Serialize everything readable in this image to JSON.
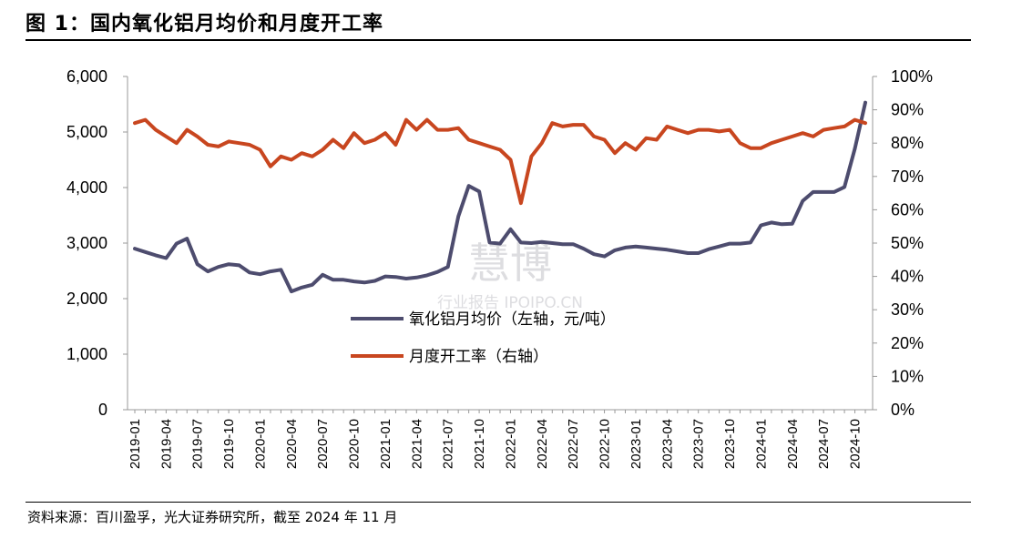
{
  "figure": {
    "title": "图 1：国内氧化铝月均价和月度开工率",
    "source": "资料来源：百川盈孚，光大证券研究所，截至 2024 年 11 月",
    "watermark": "慧博 行业报告 IPOIPO.CN"
  },
  "chart_data": {
    "type": "line",
    "x": [
      "2019-01",
      "2019-02",
      "2019-03",
      "2019-04",
      "2019-05",
      "2019-06",
      "2019-07",
      "2019-08",
      "2019-09",
      "2019-10",
      "2019-11",
      "2019-12",
      "2020-01",
      "2020-02",
      "2020-03",
      "2020-04",
      "2020-05",
      "2020-06",
      "2020-07",
      "2020-08",
      "2020-09",
      "2020-10",
      "2020-11",
      "2020-12",
      "2021-01",
      "2021-02",
      "2021-03",
      "2021-04",
      "2021-05",
      "2021-06",
      "2021-07",
      "2021-08",
      "2021-09",
      "2021-10",
      "2021-11",
      "2021-12",
      "2022-01",
      "2022-02",
      "2022-03",
      "2022-04",
      "2022-05",
      "2022-06",
      "2022-07",
      "2022-08",
      "2022-09",
      "2022-10",
      "2022-11",
      "2022-12",
      "2023-01",
      "2023-02",
      "2023-03",
      "2023-04",
      "2023-05",
      "2023-06",
      "2023-07",
      "2023-08",
      "2023-09",
      "2023-10",
      "2023-11",
      "2023-12",
      "2024-01",
      "2024-02",
      "2024-03",
      "2024-04",
      "2024-05",
      "2024-06",
      "2024-07",
      "2024-08",
      "2024-09",
      "2024-10",
      "2024-11"
    ],
    "xticks": [
      "2019-01",
      "2019-04",
      "2019-07",
      "2019-10",
      "2020-01",
      "2020-04",
      "2020-07",
      "2020-10",
      "2021-01",
      "2021-04",
      "2021-07",
      "2021-10",
      "2022-01",
      "2022-04",
      "2022-07",
      "2022-10",
      "2023-01",
      "2023-04",
      "2023-07",
      "2023-10",
      "2024-01",
      "2024-04",
      "2024-07",
      "2024-10"
    ],
    "series": [
      {
        "name": "氧化铝月均价（左轴，元/吨）",
        "axis": "left",
        "color": "#4d4c6e",
        "values": [
          2900,
          2840,
          2780,
          2730,
          2990,
          3080,
          2620,
          2490,
          2570,
          2620,
          2600,
          2470,
          2440,
          2490,
          2520,
          2130,
          2200,
          2250,
          2430,
          2340,
          2340,
          2310,
          2290,
          2320,
          2400,
          2390,
          2360,
          2380,
          2420,
          2480,
          2570,
          3480,
          4030,
          3930,
          3010,
          2990,
          3250,
          3010,
          3000,
          3020,
          3000,
          2980,
          2980,
          2900,
          2800,
          2760,
          2870,
          2920,
          2940,
          2920,
          2900,
          2880,
          2850,
          2820,
          2820,
          2890,
          2940,
          2990,
          2990,
          3010,
          3320,
          3370,
          3340,
          3350,
          3760,
          3920,
          3920,
          3920,
          4010,
          4700,
          5530
        ]
      },
      {
        "name": "月度开工率（右轴）",
        "axis": "right",
        "color": "#c8461f",
        "values": [
          86,
          87,
          84,
          82,
          80,
          84,
          82,
          79.5,
          79,
          80.5,
          80,
          79.5,
          78,
          73,
          76,
          75,
          77,
          76,
          78,
          81,
          78.5,
          83,
          80,
          81,
          83,
          79.5,
          87,
          84,
          87,
          84,
          84,
          84.5,
          81,
          80,
          79,
          78,
          75,
          62,
          76,
          80,
          86,
          85,
          85.5,
          85.5,
          82,
          81,
          77,
          80,
          78,
          81.5,
          81,
          85,
          84,
          83,
          84,
          84,
          83.5,
          84,
          80,
          78.5,
          78.5,
          80,
          81,
          82,
          83,
          82,
          84,
          84.5,
          85,
          87,
          86
        ]
      }
    ],
    "yaxis_left": {
      "range": [
        0,
        6000
      ],
      "ticks": [
        "0",
        "1,000",
        "2,000",
        "3,000",
        "4,000",
        "5,000",
        "6,000"
      ]
    },
    "yaxis_right": {
      "range": [
        0,
        100
      ],
      "ticks": [
        "0%",
        "10%",
        "20%",
        "30%",
        "40%",
        "50%",
        "60%",
        "70%",
        "80%",
        "90%",
        "100%"
      ]
    },
    "grid": false,
    "legend_position": "center"
  }
}
